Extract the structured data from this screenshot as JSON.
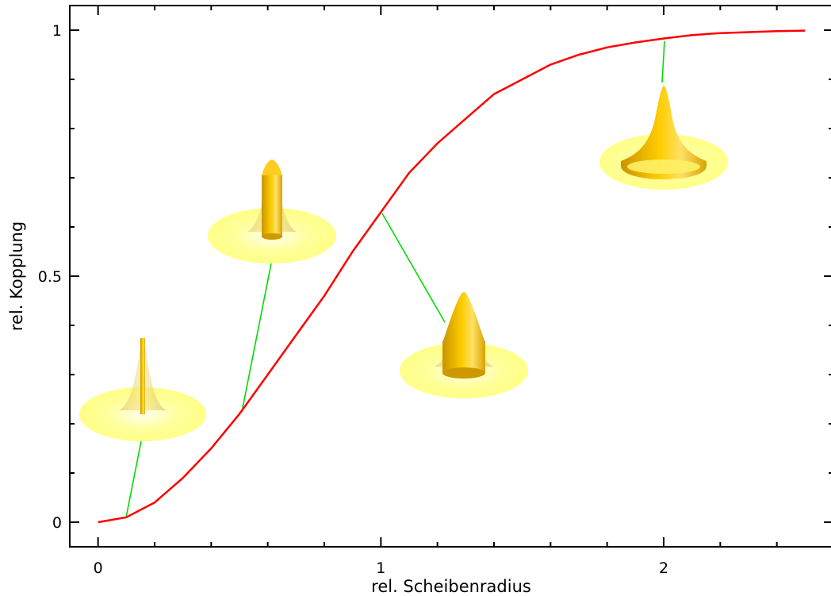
{
  "chart_data": {
    "type": "line",
    "xlabel": "rel. Scheibenradius",
    "ylabel": "rel. Kopplung",
    "xlim": [
      -0.1,
      2.6
    ],
    "ylim": [
      -0.05,
      1.05
    ],
    "x_ticks": [
      {
        "value": 0,
        "label": "0"
      },
      {
        "value": 1,
        "label": "1"
      },
      {
        "value": 2,
        "label": "2"
      }
    ],
    "y_ticks": [
      {
        "value": 0,
        "label": "0"
      },
      {
        "value": 0.5,
        "label": "0.5"
      },
      {
        "value": 1,
        "label": "1"
      }
    ],
    "x_minor_step": 0.2,
    "y_minor_step": 0.1,
    "grid": false,
    "series": [
      {
        "color": "#ff0000",
        "x": [
          0,
          0.1,
          0.2,
          0.3,
          0.4,
          0.5,
          0.6,
          0.7,
          0.8,
          0.9,
          1.0,
          1.1,
          1.2,
          1.3,
          1.4,
          1.5,
          1.6,
          1.7,
          1.8,
          1.9,
          2.0,
          2.1,
          2.2,
          2.3,
          2.4,
          2.5
        ],
        "y": [
          0,
          0.01,
          0.04,
          0.09,
          0.15,
          0.22,
          0.3,
          0.38,
          0.46,
          0.55,
          0.63,
          0.71,
          0.77,
          0.82,
          0.87,
          0.9,
          0.93,
          0.95,
          0.965,
          0.975,
          0.983,
          0.99,
          0.994,
          0.996,
          0.998,
          0.999
        ]
      }
    ],
    "annotations": [
      {
        "kind": "illustration",
        "description": "disc with thin post and bell-shaped field",
        "x": 0.1,
        "y": 0.01
      },
      {
        "kind": "illustration",
        "description": "disc with medium post and bell-shaped field",
        "x": 0.5,
        "y": 0.22
      },
      {
        "kind": "illustration",
        "description": "disc with wide post and bell-shaped field",
        "x": 1.0,
        "y": 0.63
      },
      {
        "kind": "illustration",
        "description": "bell-shaped field with full-width base disc",
        "x": 2.0,
        "y": 0.983
      }
    ],
    "colors": {
      "curve": "#ff0000",
      "leader": "#00dd00",
      "glow": "#ffff99",
      "body_light": "#ffe066",
      "body_dark": "#d9a300"
    }
  }
}
